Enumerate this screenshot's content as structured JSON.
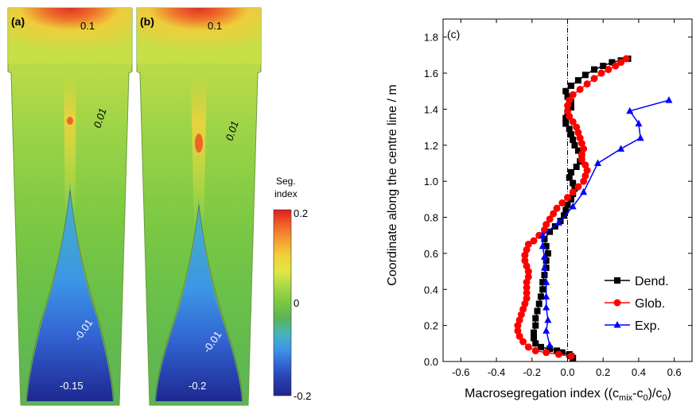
{
  "panels": {
    "a": {
      "label": "(a)",
      "contours": [
        "0.1",
        "0.01",
        "-0.01",
        "-0.15"
      ]
    },
    "b": {
      "label": "(b)",
      "contours": [
        "0.1",
        "0.01",
        "-0.01",
        "-0.2"
      ]
    }
  },
  "colorbar": {
    "title_line1": "Seg.",
    "title_line2": "index",
    "ticks": [
      "0.2",
      "0",
      "-0.2"
    ],
    "stops": [
      "#dc1e1e",
      "#f06428",
      "#f5a032",
      "#f0d23c",
      "#e1e641",
      "#a5d746",
      "#7ac843",
      "#5ab454",
      "#46b4be",
      "#3c96e6",
      "#3264d2",
      "#283caa",
      "#1e2891"
    ]
  },
  "chart_data": {
    "type": "scatter",
    "panel_label": "(c)",
    "xlabel_text": "Macrosegregation index ((c",
    "xlabel_sub1": "mix",
    "xlabel_mid": "-c",
    "xlabel_sub2": "0",
    "xlabel_end": ")/c",
    "xlabel_sub3": "0",
    "xlabel_close": ")",
    "ylabel": "Coordinate along the centre line / m",
    "xlim": [
      -0.7,
      0.7
    ],
    "ylim": [
      0.0,
      1.9
    ],
    "x_ticks": [
      "-0.6",
      "-0.4",
      "-0.2",
      "0.0",
      "0.2",
      "0.4",
      "0.6"
    ],
    "y_ticks": [
      "0.0",
      "0.2",
      "0.4",
      "0.6",
      "0.8",
      "1.0",
      "1.2",
      "1.4",
      "1.6",
      "1.8"
    ],
    "reference_line_x": 0.0,
    "legend_position": "bottom-right",
    "series": [
      {
        "name": "Dend.",
        "color": "#000000",
        "marker": "square",
        "points": [
          [
            0.03,
            0.02
          ],
          [
            0.02,
            0.03
          ],
          [
            0.01,
            0.04
          ],
          [
            -0.03,
            0.05
          ],
          [
            -0.06,
            0.06
          ],
          [
            -0.1,
            0.07
          ],
          [
            -0.15,
            0.08
          ],
          [
            -0.18,
            0.1
          ],
          [
            -0.19,
            0.13
          ],
          [
            -0.19,
            0.16
          ],
          [
            -0.18,
            0.2
          ],
          [
            -0.18,
            0.24
          ],
          [
            -0.17,
            0.28
          ],
          [
            -0.16,
            0.32
          ],
          [
            -0.15,
            0.36
          ],
          [
            -0.14,
            0.4
          ],
          [
            -0.14,
            0.44
          ],
          [
            -0.13,
            0.48
          ],
          [
            -0.12,
            0.52
          ],
          [
            -0.12,
            0.56
          ],
          [
            -0.11,
            0.6
          ],
          [
            -0.12,
            0.64
          ],
          [
            -0.13,
            0.68
          ],
          [
            -0.1,
            0.72
          ],
          [
            -0.07,
            0.75
          ],
          [
            -0.04,
            0.78
          ],
          [
            -0.02,
            0.81
          ],
          [
            -0.01,
            0.84
          ],
          [
            0.0,
            0.87
          ],
          [
            0.02,
            0.9
          ],
          [
            0.03,
            0.93
          ],
          [
            0.04,
            0.96
          ],
          [
            0.03,
            0.99
          ],
          [
            0.01,
            1.02
          ],
          [
            0.02,
            1.05
          ],
          [
            0.05,
            1.08
          ],
          [
            0.07,
            1.11
          ],
          [
            0.08,
            1.14
          ],
          [
            0.06,
            1.17
          ],
          [
            0.04,
            1.2
          ],
          [
            0.03,
            1.23
          ],
          [
            0.02,
            1.26
          ],
          [
            0.01,
            1.29
          ],
          [
            -0.01,
            1.32
          ],
          [
            -0.01,
            1.35
          ],
          [
            0.0,
            1.38
          ],
          [
            0.02,
            1.41
          ],
          [
            0.02,
            1.44
          ],
          [
            0.0,
            1.47
          ],
          [
            -0.01,
            1.5
          ],
          [
            0.02,
            1.53
          ],
          [
            0.06,
            1.56
          ],
          [
            0.1,
            1.59
          ],
          [
            0.15,
            1.62
          ],
          [
            0.2,
            1.64
          ],
          [
            0.25,
            1.66
          ],
          [
            0.3,
            1.67
          ],
          [
            0.34,
            1.68
          ]
        ]
      },
      {
        "name": "Glob.",
        "color": "#ff0000",
        "marker": "circle",
        "points": [
          [
            0.02,
            0.03
          ],
          [
            -0.05,
            0.04
          ],
          [
            -0.12,
            0.05
          ],
          [
            -0.18,
            0.06
          ],
          [
            -0.22,
            0.08
          ],
          [
            -0.25,
            0.11
          ],
          [
            -0.27,
            0.14
          ],
          [
            -0.28,
            0.17
          ],
          [
            -0.28,
            0.2
          ],
          [
            -0.27,
            0.23
          ],
          [
            -0.26,
            0.26
          ],
          [
            -0.25,
            0.29
          ],
          [
            -0.24,
            0.32
          ],
          [
            -0.23,
            0.35
          ],
          [
            -0.23,
            0.38
          ],
          [
            -0.23,
            0.41
          ],
          [
            -0.23,
            0.44
          ],
          [
            -0.22,
            0.47
          ],
          [
            -0.22,
            0.5
          ],
          [
            -0.23,
            0.53
          ],
          [
            -0.24,
            0.56
          ],
          [
            -0.24,
            0.59
          ],
          [
            -0.23,
            0.62
          ],
          [
            -0.22,
            0.65
          ],
          [
            -0.19,
            0.67
          ],
          [
            -0.16,
            0.7
          ],
          [
            -0.13,
            0.73
          ],
          [
            -0.12,
            0.76
          ],
          [
            -0.1,
            0.79
          ],
          [
            -0.08,
            0.82
          ],
          [
            -0.06,
            0.85
          ],
          [
            -0.03,
            0.88
          ],
          [
            0.0,
            0.91
          ],
          [
            0.03,
            0.94
          ],
          [
            0.06,
            0.97
          ],
          [
            0.09,
            1.0
          ],
          [
            0.1,
            1.03
          ],
          [
            0.11,
            1.06
          ],
          [
            0.1,
            1.09
          ],
          [
            0.08,
            1.12
          ],
          [
            0.08,
            1.15
          ],
          [
            0.09,
            1.18
          ],
          [
            0.08,
            1.21
          ],
          [
            0.07,
            1.24
          ],
          [
            0.06,
            1.27
          ],
          [
            0.05,
            1.3
          ],
          [
            0.03,
            1.33
          ],
          [
            0.01,
            1.36
          ],
          [
            0.0,
            1.39
          ],
          [
            0.0,
            1.42
          ],
          [
            0.01,
            1.45
          ],
          [
            0.03,
            1.48
          ],
          [
            0.07,
            1.51
          ],
          [
            0.11,
            1.54
          ],
          [
            0.15,
            1.57
          ],
          [
            0.19,
            1.6
          ],
          [
            0.23,
            1.62
          ],
          [
            0.27,
            1.64
          ],
          [
            0.3,
            1.66
          ],
          [
            0.33,
            1.68
          ]
        ]
      },
      {
        "name": "Exp.",
        "color": "#0000ff",
        "marker": "triangle",
        "points": [
          [
            -0.1,
            0.09
          ],
          [
            -0.12,
            0.17
          ],
          [
            -0.11,
            0.23
          ],
          [
            -0.12,
            0.3
          ],
          [
            -0.12,
            0.36
          ],
          [
            -0.12,
            0.44
          ],
          [
            -0.13,
            0.52
          ],
          [
            -0.13,
            0.58
          ],
          [
            -0.14,
            0.64
          ],
          [
            -0.14,
            0.7
          ],
          [
            -0.05,
            0.77
          ],
          [
            0.03,
            0.86
          ],
          [
            0.09,
            0.94
          ],
          [
            0.17,
            1.1
          ],
          [
            0.3,
            1.18
          ],
          [
            0.41,
            1.24
          ],
          [
            0.4,
            1.32
          ],
          [
            0.35,
            1.39
          ],
          [
            0.57,
            1.45
          ]
        ]
      }
    ]
  }
}
